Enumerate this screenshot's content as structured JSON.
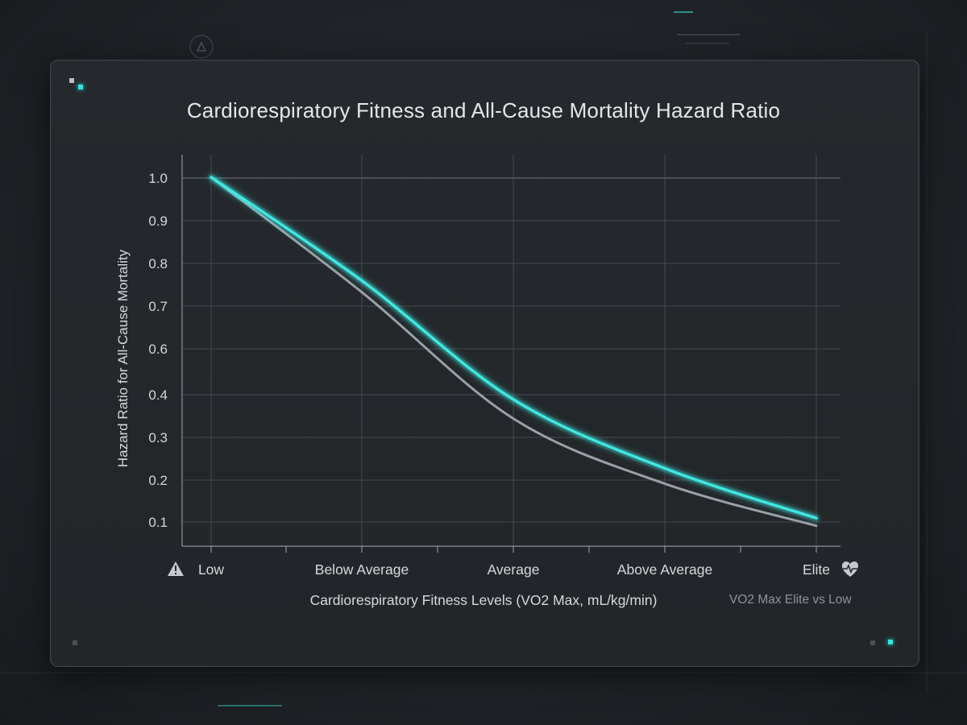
{
  "chart_data": {
    "type": "line",
    "title": "Cardiorespiratory Fitness and All-Cause Mortality Hazard Ratio",
    "xlabel": "Cardiorespiratory Fitness Levels (VO2 Max, mL/kg/min)",
    "ylabel": "Hazard Ratio for All-Cause Mortality",
    "categories": [
      "Low",
      "Below Average",
      "Average",
      "Above Average",
      "Elite"
    ],
    "yticks": [
      "1.0",
      "0.9",
      "0.8",
      "0.7",
      "0.6",
      "0.4",
      "0.3",
      "0.2",
      "0.1"
    ],
    "series": [
      {
        "values": [
          1.0,
          0.73,
          0.42,
          0.24,
          0.11
        ],
        "color": "#3fe6df"
      },
      {
        "values": [
          1.0,
          0.7,
          0.37,
          0.2,
          0.09
        ],
        "color": "#9aa0a6"
      }
    ],
    "grid": true,
    "annotation": "VO2 Max Elite vs Low",
    "icons": {
      "left": "warning-icon",
      "right": "heart-pulse-icon"
    }
  }
}
